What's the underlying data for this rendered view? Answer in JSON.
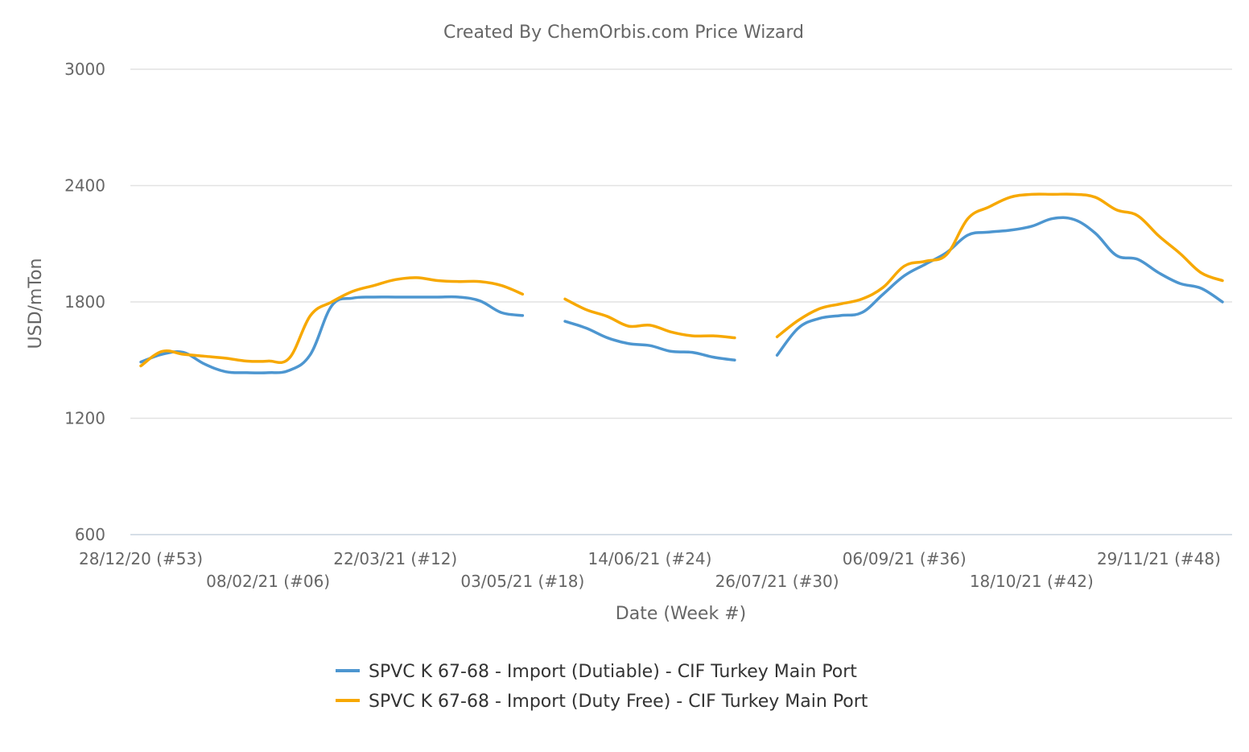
{
  "chart_data": {
    "type": "line",
    "title": "Created By ChemOrbis.com Price Wizard",
    "xlabel": "Date (Week #)",
    "ylabel": "USD/mTon",
    "ylim": [
      600,
      3000
    ],
    "yticks": [
      600,
      1200,
      1800,
      2400,
      3000
    ],
    "grid": true,
    "legend_position": "bottom",
    "x": [
      "28/12/20",
      "04/01/21",
      "11/01/21",
      "18/01/21",
      "25/01/21",
      "01/02/21",
      "08/02/21",
      "15/02/21",
      "22/02/21",
      "01/03/21",
      "08/03/21",
      "15/03/21",
      "22/03/21",
      "29/03/21",
      "05/04/21",
      "12/04/21",
      "19/04/21",
      "26/04/21",
      "03/05/21",
      "10/05/21",
      "17/05/21",
      "24/05/21",
      "31/05/21",
      "07/06/21",
      "14/06/21",
      "21/06/21",
      "28/06/21",
      "05/07/21",
      "12/07/21",
      "19/07/21",
      "26/07/21",
      "02/08/21",
      "09/08/21",
      "16/08/21",
      "23/08/21",
      "30/08/21",
      "06/09/21",
      "13/09/21",
      "20/09/21",
      "27/09/21",
      "04/10/21",
      "11/10/21",
      "18/10/21",
      "25/10/21",
      "01/11/21",
      "08/11/21",
      "15/11/21",
      "22/11/21",
      "29/11/21",
      "06/12/21",
      "13/12/21",
      "20/12/21"
    ],
    "xticks": [
      {
        "date": "28/12/20",
        "label": "28/12/20 (#53)"
      },
      {
        "date": "08/02/21",
        "label": "08/02/21 (#06)"
      },
      {
        "date": "22/03/21",
        "label": "22/03/21 (#12)"
      },
      {
        "date": "03/05/21",
        "label": "03/05/21 (#18)"
      },
      {
        "date": "14/06/21",
        "label": "14/06/21 (#24)"
      },
      {
        "date": "26/07/21",
        "label": "26/07/21 (#30)"
      },
      {
        "date": "06/09/21",
        "label": "06/09/21 (#36)"
      },
      {
        "date": "18/10/21",
        "label": "18/10/21 (#42)"
      },
      {
        "date": "29/11/21",
        "label": "29/11/21 (#48)"
      }
    ],
    "series": [
      {
        "name": "SPVC K 67-68 - Import (Dutiable) - CIF Turkey Main Port",
        "color": "#4d96d0",
        "values": [
          1490,
          1530,
          1540,
          1480,
          1440,
          1435,
          1435,
          1447,
          1530,
          1780,
          1820,
          1825,
          1825,
          1825,
          1825,
          1825,
          1805,
          1745,
          1730,
          null,
          1700,
          1665,
          1615,
          1585,
          1575,
          1545,
          1540,
          1515,
          1500,
          null,
          1525,
          1665,
          1715,
          1730,
          1745,
          1840,
          1935,
          1995,
          2055,
          2145,
          2160,
          2170,
          2190,
          2230,
          2225,
          2155,
          2040,
          2020,
          1950,
          1895,
          1870,
          1800
        ]
      },
      {
        "name": "SPVC K 67-68 - Import (Duty Free) - CIF Turkey Main Port",
        "color": "#f7a800",
        "values": [
          1470,
          1545,
          1530,
          1520,
          1510,
          1495,
          1495,
          1510,
          1730,
          1800,
          1855,
          1885,
          1915,
          1925,
          1910,
          1905,
          1905,
          1885,
          1840,
          null,
          1815,
          1760,
          1725,
          1675,
          1680,
          1645,
          1625,
          1625,
          1615,
          null,
          1620,
          1705,
          1765,
          1790,
          1815,
          1875,
          1985,
          2010,
          2045,
          2230,
          2290,
          2340,
          2355,
          2355,
          2355,
          2340,
          2275,
          2245,
          2140,
          2050,
          1950,
          1910
        ]
      }
    ]
  }
}
